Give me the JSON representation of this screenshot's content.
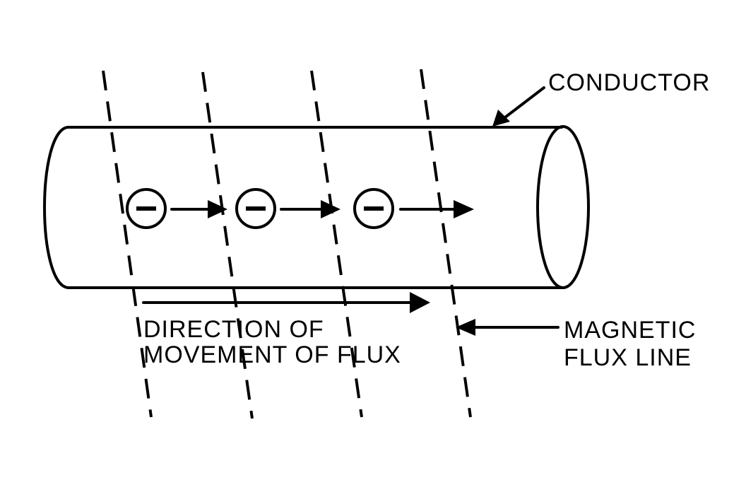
{
  "labels": {
    "conductor": "CONDUCTOR",
    "direction_line1": "DIRECTION OF",
    "direction_line2": "MOVEMENT OF FLUX",
    "flux_line1": "MAGNETIC",
    "flux_line2": "FLUX LINE"
  },
  "electrons": [
    {
      "charge": "negative",
      "symbol": "minus-sign"
    },
    {
      "charge": "negative",
      "symbol": "minus-sign"
    },
    {
      "charge": "negative",
      "symbol": "minus-sign"
    }
  ],
  "colors": {
    "ink": "#000000",
    "background": "#ffffff"
  }
}
